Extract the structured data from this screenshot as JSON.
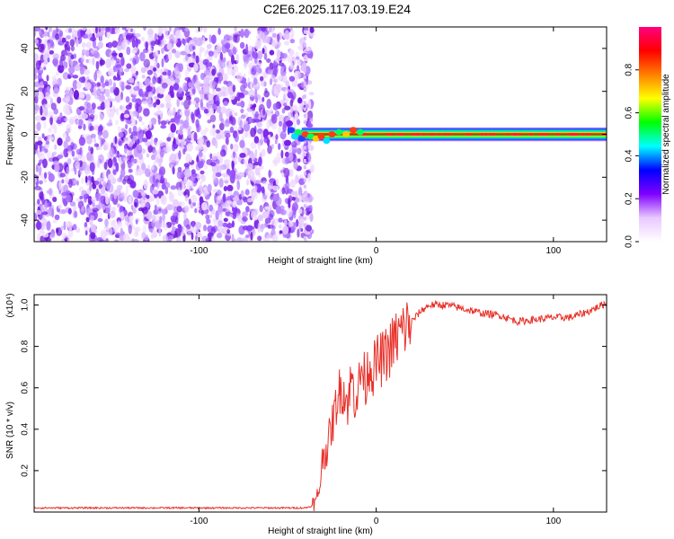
{
  "title": "C2E6.2025.117.03.19.E24",
  "colors": {
    "snr_line": "#e8312a",
    "axis": "#000000",
    "background": "#ffffff",
    "colorbar_top": "#ff007f",
    "colorbar_bottom": "#ffffff"
  },
  "chart_data": [
    {
      "type": "heatmap",
      "title": "",
      "xlabel": "Height of straight line (km)",
      "ylabel": "Frequency (Hz)",
      "xlim": [
        -193,
        130
      ],
      "ylim": [
        -50,
        50
      ],
      "x_ticks": [
        -100,
        0,
        100
      ],
      "y_ticks": [
        -40,
        -20,
        0,
        20,
        40
      ],
      "grid": false,
      "colorbar": {
        "label": "Normalized spectral amplitude",
        "range": [
          0,
          1
        ],
        "ticks": [
          "0.0",
          "0.2",
          "0.4",
          "0.6",
          "0.8"
        ],
        "colormap": [
          "#ffffff",
          "#e9c8ff",
          "#7f00ff",
          "#0000ff",
          "#00ffff",
          "#00ff00",
          "#ffff00",
          "#ff7f00",
          "#ff0000",
          "#ff007f"
        ]
      },
      "regions": [
        {
          "name": "noise",
          "x_range": [
            -193,
            -42
          ],
          "freq_range": [
            -50,
            50
          ],
          "amplitude_range": [
            0.0,
            0.15
          ]
        },
        {
          "name": "signal",
          "x_range": [
            -42,
            130
          ],
          "freq_center": 0,
          "freq_halfwidth": 3,
          "amplitude_range": [
            0.5,
            1.0
          ]
        }
      ]
    },
    {
      "type": "line",
      "title": "",
      "xlabel": "Height of straight line (km)",
      "ylabel": "SNR (10 * v/v)",
      "y_multiplier": "(x10⁴)",
      "xlim": [
        -193,
        130
      ],
      "ylim": [
        0,
        1.05
      ],
      "x_ticks": [
        -100,
        0,
        100
      ],
      "y_ticks": [
        "0.2",
        "0.4",
        "0.6",
        "0.8",
        "1.0"
      ],
      "grid": false,
      "series": [
        {
          "x": [
            -193,
            -150,
            -100,
            -60,
            -40,
            -36,
            -34,
            -32,
            -30,
            -28,
            -26,
            -24,
            -22,
            -20,
            -18,
            -16,
            -14,
            -12,
            -10,
            -8,
            -6,
            -4,
            -2,
            0,
            5,
            10,
            15,
            20,
            25,
            30,
            35,
            40,
            50,
            60,
            70,
            80,
            90,
            100,
            110,
            120,
            130
          ],
          "y": [
            0.02,
            0.02,
            0.02,
            0.02,
            0.02,
            0.03,
            0.04,
            0.12,
            0.28,
            0.3,
            0.38,
            0.45,
            0.55,
            0.6,
            0.58,
            0.52,
            0.65,
            0.55,
            0.6,
            0.7,
            0.62,
            0.72,
            0.68,
            0.72,
            0.75,
            0.82,
            0.88,
            0.92,
            0.97,
            1.0,
            1.0,
            1.0,
            0.98,
            0.96,
            0.95,
            0.92,
            0.93,
            0.94,
            0.94,
            0.97,
            1.01
          ]
        }
      ]
    }
  ]
}
